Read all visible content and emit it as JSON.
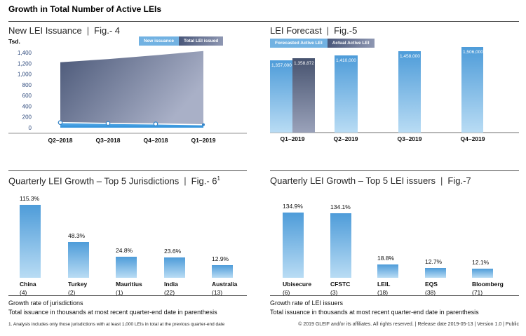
{
  "page": {
    "title": "Growth in Total Number of Active LEIs"
  },
  "ui": {
    "pipe": "|"
  },
  "colors": {
    "bar_blue_top": "#4e9cd9",
    "bar_blue_bottom": "#b9dcf4",
    "dark_blue_top": "#47536f",
    "dark_blue_bottom": "#9aa2ba",
    "band_blue": "#2f90db",
    "legend_light_blue": "#72b2e2",
    "axis_gray": "#b7b7b7",
    "tick_label_blue": "#2e4a7d"
  },
  "chart_data": [
    {
      "id": "fig4",
      "type": "area",
      "title": "New LEI Issuance",
      "fig": "Fig.- 4",
      "ylabel": "Tsd.",
      "units": "thousands",
      "ylim": [
        0,
        1400
      ],
      "ytick_step": 200,
      "yticks": [
        "0",
        "200",
        "400",
        "600",
        "800",
        "1,000",
        "1,200",
        "1,400"
      ],
      "categories": [
        "Q2–2018",
        "Q3–2018",
        "Q4–2018",
        "Q1–2019"
      ],
      "series": [
        {
          "name": "New issuance",
          "values": [
            95,
            80,
            70,
            55
          ]
        },
        {
          "name": "Total LEI issued",
          "values": [
            1220,
            1280,
            1350,
            1430
          ]
        }
      ],
      "grid": false,
      "legend_position": "top-right"
    },
    {
      "id": "fig5",
      "type": "bar",
      "title": "LEI Forecast",
      "fig": "Fig.-5",
      "categories": [
        "Q1–2019",
        "Q2–2019",
        "Q3–2019",
        "Q4–2019"
      ],
      "series": [
        {
          "name": "Forecasted Active LEI",
          "values": [
            1357000,
            1410000,
            1458000,
            1506000
          ],
          "labels": [
            "1,357,000",
            "1,410,000",
            "1,458,000",
            "1,506,000"
          ]
        },
        {
          "name": "Actual Active LEI",
          "values": [
            1358872
          ],
          "labels": [
            "1,358,872"
          ],
          "category": "Q1–2019"
        }
      ],
      "legend_position": "top-left"
    },
    {
      "id": "fig6",
      "type": "bar",
      "title": "Quarterly LEI Growth – Top 5 Jurisdictions",
      "fig": "Fig.- 6",
      "fig_sup": "1",
      "categories": [
        "China",
        "Turkey",
        "Mauritius",
        "India",
        "Australia"
      ],
      "category_sublabels": [
        "(4)",
        "(2)",
        "(1)",
        "(22)",
        "(13)"
      ],
      "values": [
        115.3,
        48.3,
        24.8,
        23.6,
        12.9
      ],
      "value_labels": [
        "115.3%",
        "48.3%",
        "24.8%",
        "23.6%",
        "12.9%"
      ],
      "notes": [
        "Growth rate of jurisdictions",
        "Total issuance in thousands at most recent quarter-end date in parenthesis"
      ],
      "footnote": "1. Analysis includes only those jurisdictions with at least 1,000 LEIs in total at the previous quarter-end date"
    },
    {
      "id": "fig7",
      "type": "bar",
      "title": "Quarterly LEI Growth – Top 5 LEI issuers",
      "fig": "Fig.-7",
      "categories": [
        "Ubisecure",
        "CFSTC",
        "LEIL",
        "EQS",
        "Bloomberg"
      ],
      "category_sublabels": [
        "(6)",
        "(3)",
        "(18)",
        "(38)",
        "(71)"
      ],
      "values": [
        134.9,
        134.1,
        18.8,
        12.7,
        12.1
      ],
      "value_labels": [
        "134.9%",
        "134.1%",
        "18.8%",
        "12.7%",
        "12.1%"
      ],
      "notes": [
        "Growth rate of LEI issuers",
        "Total issuance in thousands at most recent quarter-end date in parenthesis"
      ]
    }
  ],
  "footer": "© 2019 GLEIF and/or its affiliates. All rights reserved. | Release date 2019-05-13 | Version 1.0 | Public"
}
